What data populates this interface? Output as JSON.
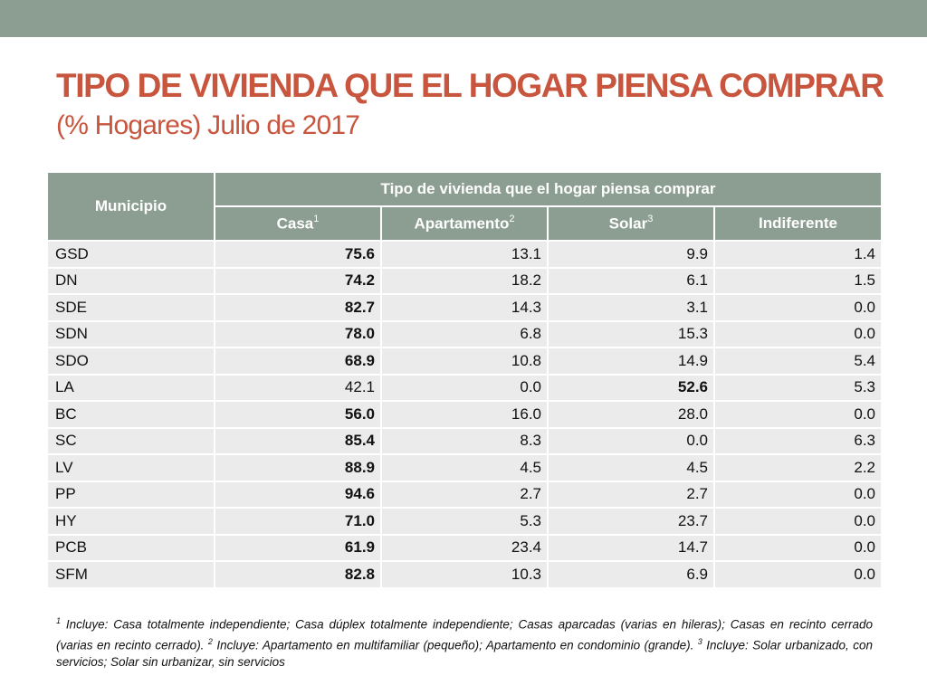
{
  "title": {
    "main": "TIPO DE VIVIENDA QUE EL HOGAR PIENSA COMPRAR",
    "sub": "(% Hogares) Julio de 2017"
  },
  "table": {
    "muni_header": "Municipio",
    "group_header": "Tipo de vivienda que el hogar piensa comprar",
    "columns": [
      {
        "label": "Casa",
        "sup": "1"
      },
      {
        "label": "Apartamento",
        "sup": "2"
      },
      {
        "label": "Solar",
        "sup": "3"
      },
      {
        "label": "Indiferente",
        "sup": ""
      }
    ],
    "rows": [
      {
        "name": "GSD",
        "values": [
          "75.6",
          "13.1",
          "9.9",
          "1.4"
        ],
        "bold": [
          true,
          false,
          false,
          false
        ]
      },
      {
        "name": "DN",
        "values": [
          "74.2",
          "18.2",
          "6.1",
          "1.5"
        ],
        "bold": [
          true,
          false,
          false,
          false
        ]
      },
      {
        "name": "SDE",
        "values": [
          "82.7",
          "14.3",
          "3.1",
          "0.0"
        ],
        "bold": [
          true,
          false,
          false,
          false
        ]
      },
      {
        "name": "SDN",
        "values": [
          "78.0",
          "6.8",
          "15.3",
          "0.0"
        ],
        "bold": [
          true,
          false,
          false,
          false
        ]
      },
      {
        "name": "SDO",
        "values": [
          "68.9",
          "10.8",
          "14.9",
          "5.4"
        ],
        "bold": [
          true,
          false,
          false,
          false
        ]
      },
      {
        "name": "LA",
        "values": [
          "42.1",
          "0.0",
          "52.6",
          "5.3"
        ],
        "bold": [
          false,
          false,
          true,
          false
        ]
      },
      {
        "name": "BC",
        "values": [
          "56.0",
          "16.0",
          "28.0",
          "0.0"
        ],
        "bold": [
          true,
          false,
          false,
          false
        ]
      },
      {
        "name": "SC",
        "values": [
          "85.4",
          "8.3",
          "0.0",
          "6.3"
        ],
        "bold": [
          true,
          false,
          false,
          false
        ]
      },
      {
        "name": "LV",
        "values": [
          "88.9",
          "4.5",
          "4.5",
          "2.2"
        ],
        "bold": [
          true,
          false,
          false,
          false
        ]
      },
      {
        "name": "PP",
        "values": [
          "94.6",
          "2.7",
          "2.7",
          "0.0"
        ],
        "bold": [
          true,
          false,
          false,
          false
        ]
      },
      {
        "name": "HY",
        "values": [
          "71.0",
          "5.3",
          "23.7",
          "0.0"
        ],
        "bold": [
          true,
          false,
          false,
          false
        ]
      },
      {
        "name": "PCB",
        "values": [
          "61.9",
          "23.4",
          "14.7",
          "0.0"
        ],
        "bold": [
          true,
          false,
          false,
          false
        ]
      },
      {
        "name": "SFM",
        "values": [
          "82.8",
          "10.3",
          "6.9",
          "0.0"
        ],
        "bold": [
          true,
          false,
          false,
          false
        ]
      }
    ]
  },
  "footnote": {
    "n1": "1",
    "t1": " Incluye: Casa totalmente independiente; Casa dúplex totalmente independiente; Casas aparcadas (varias en hileras); Casas en recinto cerrado (varias en recinto cerrado). ",
    "n2": "2",
    "t2": " Incluye: Apartamento en multifamiliar (pequeño); Apartamento en condominio (grande). ",
    "n3": "3",
    "t3": " Incluye: Solar urbanizado, con servicios; Solar sin urbanizar, sin servicios"
  },
  "colors": {
    "title": "#c8553d",
    "header_bg": "#8c9e91",
    "row_bg": "#ebebeb"
  }
}
